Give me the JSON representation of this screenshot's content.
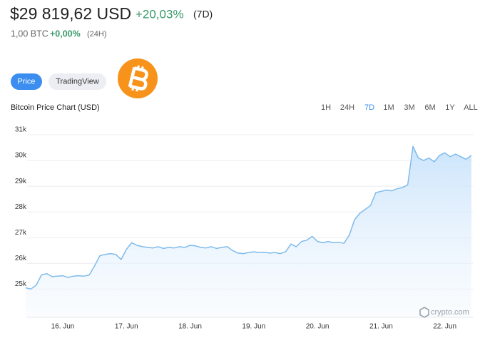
{
  "header": {
    "price": "$29 819,62 USD",
    "change": "+20,03%",
    "change_period": "(7D)",
    "btc_amount": "1,00 BTC",
    "btc_change": "+0,00%",
    "btc_change_period": "(24H)"
  },
  "tabs": [
    "Price",
    "TradingView"
  ],
  "ranges": [
    "1H",
    "24H",
    "7D",
    "1M",
    "3M",
    "6M",
    "1Y",
    "ALL"
  ],
  "watermark": "crypto.com",
  "chart_data": {
    "type": "area",
    "title": "Bitcoin Price Chart (USD)",
    "color": "#7fbbea",
    "categories": [
      null,
      null,
      null,
      null,
      null,
      null,
      null,
      "16. Jun",
      null,
      null,
      null,
      null,
      null,
      null,
      null,
      null,
      null,
      null,
      null,
      "17. Jun",
      null,
      null,
      null,
      null,
      null,
      null,
      null,
      null,
      null,
      null,
      null,
      "18. Jun",
      null,
      null,
      null,
      null,
      null,
      null,
      null,
      null,
      null,
      null,
      null,
      "19. Jun",
      null,
      null,
      null,
      null,
      null,
      null,
      null,
      null,
      null,
      null,
      null,
      "20. Jun",
      null,
      null,
      null,
      null,
      null,
      null,
      null,
      null,
      null,
      null,
      null,
      "21. Jun",
      null,
      null,
      null,
      null,
      null,
      null,
      null,
      null,
      null,
      null,
      null,
      "22. Jun",
      null,
      null,
      null,
      null,
      null
    ],
    "values": [
      25050,
      25000,
      25150,
      25550,
      25600,
      25480,
      25500,
      25520,
      25450,
      25500,
      25520,
      25500,
      25550,
      25900,
      26300,
      26350,
      26380,
      26350,
      26150,
      26550,
      26800,
      26700,
      26650,
      26620,
      26600,
      26650,
      26580,
      26620,
      26600,
      26650,
      26620,
      26700,
      26680,
      26620,
      26600,
      26650,
      26580,
      26620,
      26650,
      26500,
      26400,
      26380,
      26420,
      26450,
      26420,
      26430,
      26400,
      26420,
      26380,
      26450,
      26750,
      26650,
      26850,
      26900,
      27050,
      26850,
      26800,
      26850,
      26800,
      26820,
      26780,
      27100,
      27700,
      27950,
      28100,
      28250,
      28750,
      28800,
      28850,
      28820,
      28900,
      28950,
      29050,
      30550,
      30100,
      30000,
      30100,
      29950,
      30200,
      30300,
      30150,
      30250,
      30150,
      30050,
      30200
    ],
    "ylim": [
      23900,
      31250
    ],
    "yticks": [
      {
        "value": 25000,
        "label": "25k"
      },
      {
        "value": 26000,
        "label": "26k"
      },
      {
        "value": 27000,
        "label": "27k"
      },
      {
        "value": 28000,
        "label": "28k"
      },
      {
        "value": 29000,
        "label": "29k"
      },
      {
        "value": 30000,
        "label": "30k"
      },
      {
        "value": 31000,
        "label": "31k"
      }
    ],
    "grid": true
  }
}
